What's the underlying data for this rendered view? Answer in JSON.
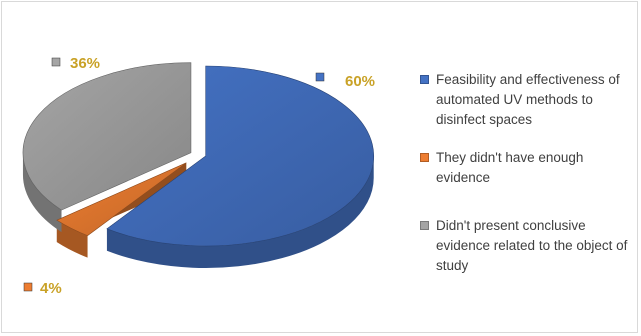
{
  "chart_data": {
    "type": "pie",
    "title": "",
    "categories": [
      "Feasibility and effectiveness of automated UV methods to disinfect spaces",
      "They didn't have enough evidence",
      "Didn't present conclusive evidence related to the object of study"
    ],
    "values": [
      60,
      4,
      36
    ],
    "data_labels": [
      "60%",
      "4%",
      "36%"
    ],
    "colors": [
      "#4472c4",
      "#ed7d31",
      "#a5a5a5"
    ],
    "label_color": "#c9a227",
    "legend_position": "right",
    "style": "3d-exploded"
  }
}
